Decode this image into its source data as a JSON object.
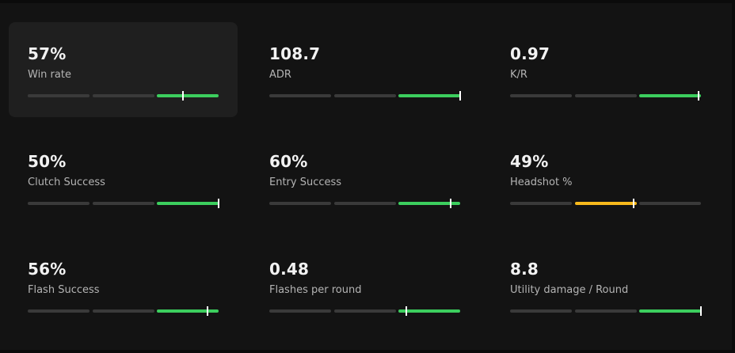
{
  "colors": {
    "good": "#3cce5e",
    "average": "#f7b91c",
    "track": "#3a3a3a"
  },
  "stats": [
    {
      "id": "win-rate",
      "value": "57%",
      "label": "Win rate",
      "tier": 2,
      "tier_color": "good",
      "level_in_segment": 0.42,
      "selected": true
    },
    {
      "id": "adr",
      "value": "108.7",
      "label": "ADR",
      "tier": 2,
      "tier_color": "good",
      "level_in_segment": 1.0,
      "selected": false
    },
    {
      "id": "kr",
      "value": "0.97",
      "label": "K/R",
      "tier": 2,
      "tier_color": "good",
      "level_in_segment": 0.96,
      "selected": false
    },
    {
      "id": "clutch-success",
      "value": "50%",
      "label": "Clutch Success",
      "tier": 2,
      "tier_color": "good",
      "level_in_segment": 1.0,
      "selected": false
    },
    {
      "id": "entry-success",
      "value": "60%",
      "label": "Entry Success",
      "tier": 2,
      "tier_color": "good",
      "level_in_segment": 0.85,
      "selected": false
    },
    {
      "id": "headshot-pct",
      "value": "49%",
      "label": "Headshot %",
      "tier": 1,
      "tier_color": "average",
      "level_in_segment": 0.95,
      "selected": false
    },
    {
      "id": "flash-success",
      "value": "56%",
      "label": "Flash Success",
      "tier": 2,
      "tier_color": "good",
      "level_in_segment": 0.82,
      "selected": false
    },
    {
      "id": "flashes-per-round",
      "value": "0.48",
      "label": "Flashes per round",
      "tier": 2,
      "tier_color": "good",
      "level_in_segment": 0.13,
      "selected": false
    },
    {
      "id": "utility-damage-round",
      "value": "8.8",
      "label": "Utility damage / Round",
      "tier": 2,
      "tier_color": "good",
      "level_in_segment": 1.0,
      "selected": false
    }
  ]
}
